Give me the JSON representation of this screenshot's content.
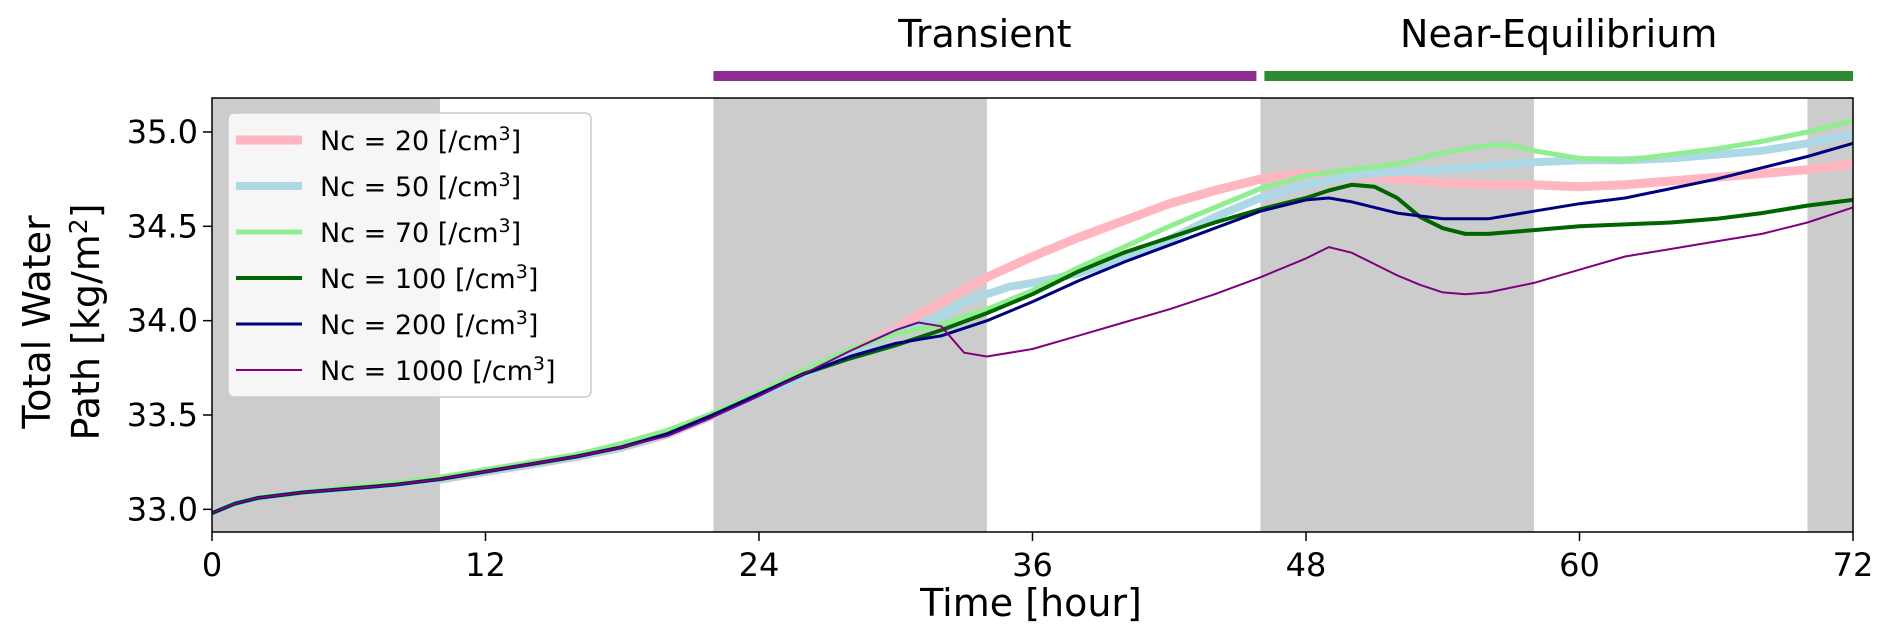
{
  "chart_data": {
    "type": "line",
    "xlabel": "Time [hour]",
    "ylabel_line1": "Total Water",
    "ylabel_line2": "Path [kg/m",
    "ylabel_sup": "2",
    "ylabel_close": "]",
    "xlim": [
      0,
      72
    ],
    "ylim": [
      32.88,
      35.18
    ],
    "xticks": [
      0,
      12,
      24,
      36,
      48,
      60,
      72
    ],
    "yticks": [
      33.0,
      33.5,
      34.0,
      34.5,
      35.0
    ],
    "ytick_labels": [
      "33.0",
      "33.5",
      "34.0",
      "34.5",
      "35.0"
    ],
    "xtick_labels": [
      "0",
      "12",
      "24",
      "36",
      "48",
      "60",
      "72"
    ],
    "grid": false,
    "legend_position": "upper-left",
    "shaded_bands": [
      [
        0,
        10
      ],
      [
        22,
        34
      ],
      [
        46,
        58
      ],
      [
        70,
        72
      ]
    ],
    "band_color": "#cccccc",
    "phases": [
      {
        "label": "Transient",
        "start": 22,
        "end": 46,
        "color": "#8e2c92"
      },
      {
        "label": "Near-Equilibrium",
        "start": 46,
        "end": 72,
        "color": "#2e8b35"
      }
    ],
    "series": [
      {
        "name": "Nc = 20 [/cm",
        "sup": "3",
        "close": "]",
        "color": "#ffb6c1",
        "width": 9,
        "x": [
          0,
          1,
          2,
          4,
          6,
          8,
          10,
          12,
          14,
          16,
          18,
          20,
          22,
          24,
          26,
          28,
          30,
          32,
          34,
          36,
          38,
          40,
          42,
          44,
          46,
          48,
          50,
          52,
          54,
          56,
          58,
          60,
          62,
          64,
          66,
          68,
          70,
          72
        ],
        "y": [
          32.98,
          33.03,
          33.06,
          33.09,
          33.11,
          33.13,
          33.16,
          33.2,
          33.24,
          33.28,
          33.33,
          33.4,
          33.5,
          33.6,
          33.71,
          33.83,
          33.96,
          34.1,
          34.23,
          34.34,
          34.44,
          34.53,
          34.62,
          34.69,
          34.75,
          34.78,
          34.77,
          34.75,
          34.73,
          34.72,
          34.72,
          34.71,
          34.72,
          34.74,
          34.76,
          34.78,
          34.8,
          34.83
        ]
      },
      {
        "name": "Nc = 50 [/cm",
        "sup": "3",
        "close": "]",
        "color": "#add8e6",
        "width": 8,
        "x": [
          0,
          1,
          2,
          4,
          6,
          8,
          10,
          12,
          14,
          16,
          18,
          20,
          22,
          24,
          26,
          28,
          30,
          31,
          32,
          33,
          34,
          35,
          36,
          38,
          40,
          42,
          44,
          46,
          48,
          50,
          52,
          54,
          56,
          58,
          60,
          62,
          64,
          66,
          68,
          70,
          72
        ],
        "y": [
          32.98,
          33.03,
          33.06,
          33.09,
          33.11,
          33.13,
          33.16,
          33.2,
          33.24,
          33.28,
          33.33,
          33.4,
          33.5,
          33.6,
          33.71,
          33.83,
          33.94,
          33.98,
          34.02,
          34.1,
          34.14,
          34.18,
          34.2,
          34.25,
          34.33,
          34.43,
          34.55,
          34.65,
          34.72,
          34.77,
          34.79,
          34.8,
          34.82,
          34.84,
          34.85,
          34.85,
          34.86,
          34.88,
          34.9,
          34.94,
          34.99
        ]
      },
      {
        "name": "Nc = 70 [/cm",
        "sup": "3",
        "close": "]",
        "color": "#90ee90",
        "width": 5,
        "x": [
          0,
          1,
          2,
          4,
          6,
          8,
          10,
          12,
          14,
          16,
          18,
          20,
          22,
          24,
          26,
          28,
          30,
          32,
          34,
          36,
          38,
          40,
          42,
          44,
          46,
          48,
          50,
          52,
          54,
          56,
          57,
          58,
          60,
          62,
          64,
          66,
          68,
          70,
          72
        ],
        "y": [
          32.98,
          33.03,
          33.06,
          33.09,
          33.12,
          33.14,
          33.17,
          33.21,
          33.25,
          33.29,
          33.35,
          33.42,
          33.51,
          33.62,
          33.74,
          33.85,
          33.93,
          33.98,
          34.06,
          34.16,
          34.28,
          34.39,
          34.5,
          34.6,
          34.7,
          34.77,
          34.8,
          34.83,
          34.89,
          34.93,
          34.93,
          34.9,
          34.86,
          34.85,
          34.88,
          34.91,
          34.95,
          35.0,
          35.06
        ]
      },
      {
        "name": "Nc = 100 [/cm",
        "sup": "3",
        "close": "]",
        "color": "#006400",
        "width": 4,
        "x": [
          0,
          1,
          2,
          4,
          6,
          8,
          10,
          12,
          14,
          16,
          18,
          20,
          22,
          24,
          26,
          28,
          30,
          32,
          34,
          36,
          38,
          40,
          42,
          44,
          46,
          48,
          49,
          50,
          51,
          52,
          53,
          54,
          55,
          56,
          58,
          60,
          62,
          64,
          66,
          68,
          70,
          72
        ],
        "y": [
          32.98,
          33.03,
          33.06,
          33.09,
          33.11,
          33.13,
          33.16,
          33.2,
          33.24,
          33.28,
          33.33,
          33.4,
          33.5,
          33.61,
          33.72,
          33.8,
          33.87,
          33.95,
          34.04,
          34.14,
          34.26,
          34.36,
          34.44,
          34.52,
          34.59,
          34.65,
          34.69,
          34.72,
          34.71,
          34.65,
          34.55,
          34.49,
          34.46,
          34.46,
          34.48,
          34.5,
          34.51,
          34.52,
          34.54,
          34.57,
          34.61,
          34.64
        ]
      },
      {
        "name": "Nc = 200 [/cm",
        "sup": "3",
        "close": "]",
        "color": "#000080",
        "width": 3,
        "x": [
          0,
          1,
          2,
          4,
          6,
          8,
          10,
          12,
          14,
          16,
          18,
          20,
          22,
          24,
          26,
          28,
          30,
          32,
          34,
          36,
          38,
          40,
          42,
          44,
          46,
          48,
          49,
          50,
          52,
          54,
          56,
          58,
          60,
          62,
          64,
          66,
          68,
          70,
          72
        ],
        "y": [
          32.98,
          33.03,
          33.06,
          33.09,
          33.11,
          33.13,
          33.16,
          33.2,
          33.24,
          33.28,
          33.33,
          33.4,
          33.5,
          33.61,
          33.72,
          33.81,
          33.88,
          33.92,
          34.0,
          34.1,
          34.21,
          34.31,
          34.4,
          34.49,
          34.58,
          34.64,
          34.65,
          34.63,
          34.57,
          34.54,
          34.54,
          34.58,
          34.62,
          34.65,
          34.7,
          34.75,
          34.81,
          34.87,
          34.94
        ]
      },
      {
        "name": "Nc = 1000 [/cm",
        "sup": "3",
        "close": "]",
        "color": "#800080",
        "width": 2,
        "x": [
          0,
          1,
          2,
          4,
          6,
          8,
          10,
          12,
          14,
          16,
          18,
          20,
          22,
          24,
          26,
          28,
          30,
          31,
          32,
          33,
          34,
          36,
          38,
          40,
          42,
          44,
          46,
          48,
          49,
          50,
          52,
          53,
          54,
          55,
          56,
          58,
          60,
          62,
          64,
          66,
          68,
          70,
          72
        ],
        "y": [
          32.98,
          33.03,
          33.06,
          33.09,
          33.11,
          33.13,
          33.16,
          33.2,
          33.24,
          33.28,
          33.33,
          33.39,
          33.49,
          33.6,
          33.72,
          33.84,
          33.95,
          33.99,
          33.97,
          33.83,
          33.81,
          33.85,
          33.92,
          33.99,
          34.06,
          34.14,
          34.23,
          34.33,
          34.39,
          34.36,
          34.24,
          34.19,
          34.15,
          34.14,
          34.15,
          34.2,
          34.27,
          34.34,
          34.38,
          34.42,
          34.46,
          34.52,
          34.6
        ]
      }
    ]
  }
}
